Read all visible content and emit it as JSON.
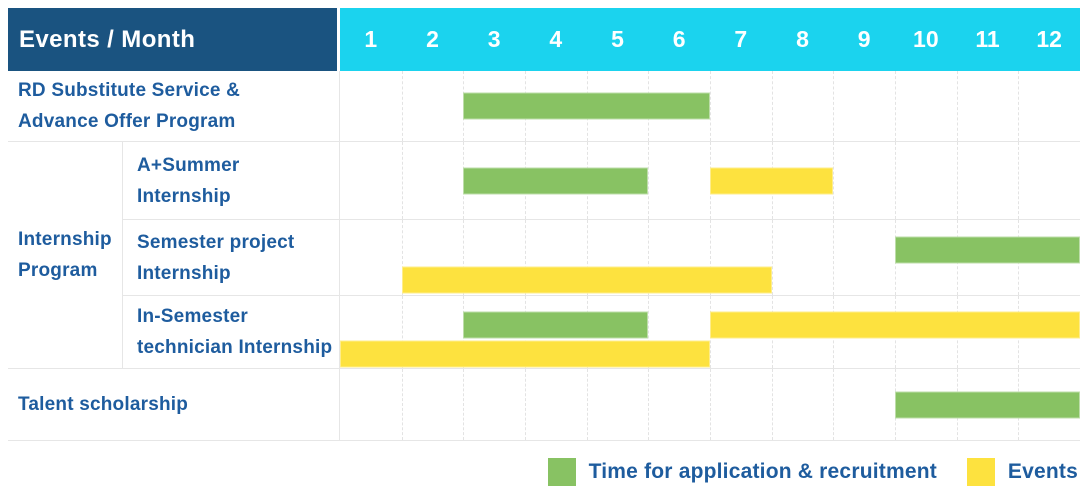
{
  "header": {
    "title": "Events / Month",
    "months": [
      "1",
      "2",
      "3",
      "4",
      "5",
      "6",
      "7",
      "8",
      "9",
      "10",
      "11",
      "12"
    ]
  },
  "colors": {
    "header_bg": "#1A5380",
    "months_bg": "#1BD3EE",
    "green": "#88C263",
    "yellow": "#FDE23F",
    "label_text": "#1E5C9E"
  },
  "legend": {
    "items": [
      {
        "id": "application",
        "label": "Time for application & recruitment",
        "color": "#88C263"
      },
      {
        "id": "events",
        "label": "Events",
        "color": "#FDE23F"
      }
    ]
  },
  "chart_data": {
    "type": "table",
    "subtype": "gantt-schedule",
    "title": "Events / Month",
    "x": {
      "label": "Month",
      "ticks": [
        1,
        2,
        3,
        4,
        5,
        6,
        7,
        8,
        9,
        10,
        11,
        12
      ],
      "range": [
        1,
        12
      ]
    },
    "legend": [
      {
        "name": "Time for application & recruitment",
        "color": "green"
      },
      {
        "name": "Events",
        "color": "yellow"
      }
    ],
    "group_display": "Internship\nProgram",
    "rows": [
      {
        "group": null,
        "label": "RD Substitute Service &\nAdvance Offer Program",
        "lanes": 1,
        "bars": [
          {
            "series": "Time for application & recruitment",
            "color": "green",
            "start_month": 3,
            "end_month": 6,
            "lane": 0
          }
        ]
      },
      {
        "group": "Internship Program",
        "label": "A+Summer\nInternship",
        "lanes": 1,
        "bars": [
          {
            "series": "Time for application & recruitment",
            "color": "green",
            "start_month": 3,
            "end_month": 5,
            "lane": 0
          },
          {
            "series": "Events",
            "color": "yellow",
            "start_month": 7,
            "end_month": 8,
            "lane": 0
          }
        ]
      },
      {
        "group": "Internship Program",
        "label": "Semester project\nInternship",
        "lanes": 2,
        "bars": [
          {
            "series": "Time for application & recruitment",
            "color": "green",
            "start_month": 10,
            "end_month": 12,
            "lane": 0
          },
          {
            "series": "Events",
            "color": "yellow",
            "start_month": 2,
            "end_month": 7,
            "lane": 1
          }
        ]
      },
      {
        "group": "Internship Program",
        "label": "In-Semester\ntechnician Internship",
        "lanes": 2,
        "bars": [
          {
            "series": "Time for application & recruitment",
            "color": "green",
            "start_month": 3,
            "end_month": 5,
            "lane": 0
          },
          {
            "series": "Events",
            "color": "yellow",
            "start_month": 7,
            "end_month": 12,
            "lane": 0
          },
          {
            "series": "Events",
            "color": "yellow",
            "start_month": 1,
            "end_month": 6,
            "lane": 1
          }
        ]
      },
      {
        "group": null,
        "label": "Talent scholarship",
        "lanes": 1,
        "bars": [
          {
            "series": "Time for application & recruitment",
            "color": "green",
            "start_month": 10,
            "end_month": 12,
            "lane": 0
          }
        ]
      }
    ]
  }
}
